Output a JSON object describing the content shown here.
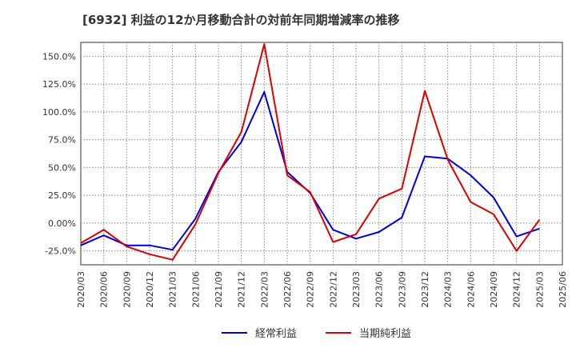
{
  "chart_data": {
    "type": "line",
    "title": "[6932]  利益の12か月移動合計の対前年同期増減率の推移",
    "xlabel": "",
    "ylabel": "",
    "ylim": [
      -37.5,
      162.5
    ],
    "yticks": [
      -25,
      0,
      25,
      50,
      75,
      100,
      125,
      150
    ],
    "ytick_labels": [
      "-25.0%",
      "0.00%",
      "25.0%",
      "50.0%",
      "75.0%",
      "100.0%",
      "125.0%",
      "150.0%"
    ],
    "categories": [
      "2020/03",
      "2020/06",
      "2020/09",
      "2020/12",
      "2021/03",
      "2021/06",
      "2021/09",
      "2021/12",
      "2022/03",
      "2022/06",
      "2022/09",
      "2022/12",
      "2023/03",
      "2023/06",
      "2023/09",
      "2023/12",
      "2024/03",
      "2024/06",
      "2024/09",
      "2024/12",
      "2025/03",
      "2025/06"
    ],
    "grid": true,
    "legend_position": "bottom",
    "series": [
      {
        "name": "経常利益",
        "color": "#0000dd",
        "values": [
          -20,
          -11,
          -20,
          -20,
          -24,
          4,
          46,
          73,
          118,
          46,
          27,
          -6,
          -14,
          -8,
          5,
          60,
          58,
          43,
          23,
          -12,
          -5,
          null
        ]
      },
      {
        "name": "当期純利益",
        "color": "#dd0000",
        "values": [
          -18,
          -6,
          -21,
          -28,
          -33,
          -1,
          45,
          82,
          161,
          43,
          28,
          -17,
          -10,
          22,
          31,
          119,
          57,
          19,
          8,
          -25,
          3,
          null
        ]
      }
    ]
  }
}
